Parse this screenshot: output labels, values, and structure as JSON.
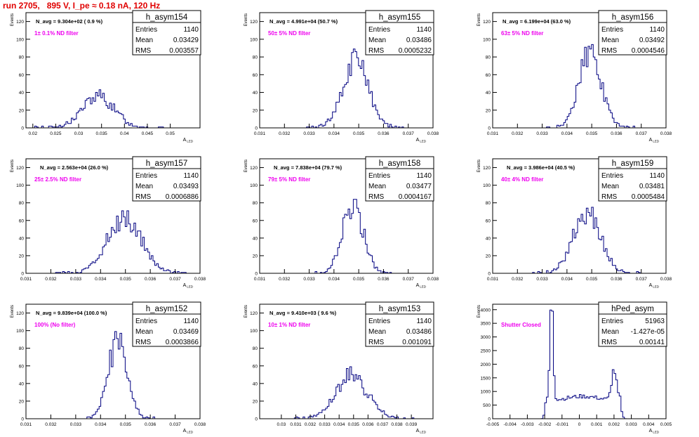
{
  "run_title": "run 2705,   895 V, I_pe ≈ 0.18 nA, 120 Hz",
  "colors": {
    "hist": "#000080",
    "note": "#ee00ee",
    "title": "#e00000",
    "frame": "#000000"
  },
  "stats_labels": [
    "Entries",
    "Mean",
    "RMS"
  ],
  "chart_data": [
    {
      "type": "bar",
      "name": "h_asym154",
      "navg": "N_avg = 9.304e+02 ( 0.9 %)",
      "note": "1± 0.1% ND filter",
      "stats": [
        "1140",
        "0.03429",
        "0.003557"
      ],
      "xlim": [
        0.0185,
        0.0565
      ],
      "ylim": [
        0,
        130
      ],
      "xticks": [
        "0.02",
        "0.025",
        "0.03",
        "0.035",
        "0.04",
        "0.045",
        "0.05"
      ],
      "yticks": [
        "0",
        "20",
        "40",
        "60",
        "80",
        "100",
        "120"
      ],
      "xlabel": "A",
      "xlabel_sub": "LED",
      "ylabel": "Events",
      "mean": 0.03429,
      "rms": 0.003557,
      "peak": 35
    },
    {
      "type": "bar",
      "name": "h_asym155",
      "navg": "N_avg = 4.991e+04 (50.7 %)",
      "note": "50± 5% ND filter",
      "stats": [
        "1140",
        "0.03486",
        "0.0005232"
      ],
      "xlim": [
        0.031,
        0.038
      ],
      "ylim": [
        0,
        130
      ],
      "xticks": [
        "0.031",
        "0.032",
        "0.033",
        "0.034",
        "0.035",
        "0.036",
        "0.037",
        "0.038"
      ],
      "yticks": [
        "0",
        "20",
        "40",
        "60",
        "80",
        "100",
        "120"
      ],
      "xlabel": "A",
      "xlabel_sub": "LED",
      "ylabel": "Events",
      "mean": 0.03486,
      "rms": 0.0005232,
      "peak": 75
    },
    {
      "type": "bar",
      "name": "h_asym156",
      "navg": "N_avg = 6.199e+04 (63.0 %)",
      "note": "63± 5% ND filter",
      "stats": [
        "1140",
        "0.03492",
        "0.0004546"
      ],
      "xlim": [
        0.031,
        0.038
      ],
      "ylim": [
        0,
        130
      ],
      "xticks": [
        "0.031",
        "0.032",
        "0.033",
        "0.034",
        "0.035",
        "0.036",
        "0.037",
        "0.038"
      ],
      "yticks": [
        "0",
        "20",
        "40",
        "60",
        "80",
        "100",
        "120"
      ],
      "xlabel": "A",
      "xlabel_sub": "LED",
      "ylabel": "Events",
      "mean": 0.03492,
      "rms": 0.0004546,
      "peak": 83
    },
    {
      "type": "bar",
      "name": "h_asym157",
      "navg": "N_avg = 2.563e+04 (26.0 %)",
      "note": "25± 2.5% ND filter",
      "stats": [
        "1140",
        "0.03493",
        "0.0006886"
      ],
      "xlim": [
        0.031,
        0.038
      ],
      "ylim": [
        0,
        130
      ],
      "xticks": [
        "0.031",
        "0.032",
        "0.033",
        "0.034",
        "0.035",
        "0.036",
        "0.037",
        "0.038"
      ],
      "yticks": [
        "0",
        "20",
        "40",
        "60",
        "80",
        "100",
        "120"
      ],
      "xlabel": "A",
      "xlabel_sub": "LED",
      "ylabel": "Events",
      "mean": 0.03493,
      "rms": 0.0006886,
      "peak": 63
    },
    {
      "type": "bar",
      "name": "h_asym158",
      "navg": "N_avg = 7.838e+04 (79.7 %)",
      "note": "79± 5% ND filter",
      "stats": [
        "1140",
        "0.03477",
        "0.0004167"
      ],
      "xlim": [
        0.031,
        0.038
      ],
      "ylim": [
        0,
        130
      ],
      "xticks": [
        "0.031",
        "0.032",
        "0.033",
        "0.034",
        "0.035",
        "0.036",
        "0.037",
        "0.038"
      ],
      "yticks": [
        "0",
        "20",
        "40",
        "60",
        "80",
        "100",
        "120"
      ],
      "xlabel": "A",
      "xlabel_sub": "LED",
      "ylabel": "Events",
      "mean": 0.03477,
      "rms": 0.0004167,
      "peak": 80
    },
    {
      "type": "bar",
      "name": "h_asym159",
      "navg": "N_avg = 3.986e+04 (40.5 %)",
      "note": "40± 4% ND filter",
      "stats": [
        "1140",
        "0.03481",
        "0.0005484"
      ],
      "xlim": [
        0.031,
        0.038
      ],
      "ylim": [
        0,
        130
      ],
      "xticks": [
        "0.031",
        "0.032",
        "0.033",
        "0.034",
        "0.035",
        "0.036",
        "0.037",
        "0.038"
      ],
      "yticks": [
        "0",
        "20",
        "40",
        "60",
        "80",
        "100",
        "120"
      ],
      "xlabel": "A",
      "xlabel_sub": "LED",
      "ylabel": "Events",
      "mean": 0.03481,
      "rms": 0.0005484,
      "peak": 66
    },
    {
      "type": "bar",
      "name": "h_asym152",
      "navg": "N_avg = 9.839e+04 (100.0 %)",
      "note": "100% (No filter)",
      "stats": [
        "1140",
        "0.03469",
        "0.0003866"
      ],
      "xlim": [
        0.031,
        0.038
      ],
      "ylim": [
        0,
        130
      ],
      "xticks": [
        "0.031",
        "0.032",
        "0.033",
        "0.034",
        "0.035",
        "0.036",
        "0.037",
        "0.038"
      ],
      "yticks": [
        "0",
        "20",
        "40",
        "60",
        "80",
        "100",
        "120"
      ],
      "xlabel": "A",
      "xlabel_sub": "LED",
      "ylabel": "Events",
      "mean": 0.03469,
      "rms": 0.0003866,
      "peak": 86
    },
    {
      "type": "bar",
      "name": "h_asym153",
      "navg": "N_avg = 9.410e+03 ( 9.6 %)",
      "note": "10± 1% ND filter",
      "stats": [
        "1140",
        "0.03486",
        "0.001091"
      ],
      "xlim": [
        0.0285,
        0.0405
      ],
      "ylim": [
        0,
        130
      ],
      "xticks": [
        "0.03",
        "0.031",
        "0.032",
        "0.033",
        "0.034",
        "0.035",
        "0.036",
        "0.037",
        "0.038",
        "0.039"
      ],
      "yticks": [
        "0",
        "20",
        "40",
        "60",
        "80",
        "100",
        "120"
      ],
      "xlabel": "A",
      "xlabel_sub": "LED",
      "ylabel": "Events",
      "mean": 0.03486,
      "rms": 0.001091,
      "peak": 50
    },
    {
      "type": "bar",
      "name": "hPed_asym",
      "navg": "",
      "note": "Shutter Closed",
      "stats": [
        "51963",
        "-1.427e-05",
        "0.00141"
      ],
      "xlim": [
        -0.005,
        0.005
      ],
      "ylim": [
        0,
        4200
      ],
      "xticks": [
        "-0.005",
        "-0.004",
        "-0.003",
        "-0.002",
        "-0.001",
        "0",
        "0.001",
        "0.002",
        "0.003",
        "0.004",
        "0.005"
      ],
      "yticks": [
        "0",
        "500",
        "1000",
        "1500",
        "2000",
        "2500",
        "3000",
        "3500",
        "4000"
      ],
      "xlabel": "A",
      "xlabel_sub": "LED",
      "ylabel": "Events",
      "bimodal": {
        "left": -0.0016,
        "right": 0.002,
        "left_peak": 3950,
        "right_peak": 1850,
        "plateau": 760
      }
    }
  ]
}
